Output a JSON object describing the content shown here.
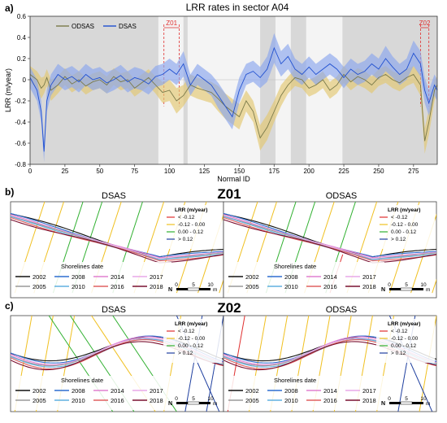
{
  "panel_a": {
    "letter": "a)",
    "title": "LRR rates in sector A04",
    "zone1_label": "Z01",
    "zone2_label": "Z02"
  },
  "panel_b": {
    "letter": "b)",
    "zone": "Z01",
    "left_title": "DSAS",
    "right_title": "ODSAS"
  },
  "panel_c": {
    "letter": "c)",
    "zone": "Z02",
    "left_title": "DSAS",
    "right_title": "ODSAS"
  },
  "lrr_legend": {
    "title": "LRR (m/year)",
    "items": [
      {
        "label": "< -0.12",
        "color": "#e03030"
      },
      {
        "label": "-0.12 - 0.00",
        "color": "#f0c020"
      },
      {
        "label": "0.00 - 0.12",
        "color": "#30b030"
      },
      {
        "label": "> 0.12",
        "color": "#2040a0"
      }
    ]
  },
  "shoreline_legend": {
    "title": "Shorelines date",
    "items": [
      {
        "label": "2002",
        "color": "#111111"
      },
      {
        "label": "2008",
        "color": "#2f6fd0"
      },
      {
        "label": "2014",
        "color": "#e080d0"
      },
      {
        "label": "2017",
        "color": "#e8a8e8"
      },
      {
        "label": "2005",
        "color": "#9a9a9a"
      },
      {
        "label": "2010",
        "color": "#60b0e0"
      },
      {
        "label": "2016",
        "color": "#e06060"
      },
      {
        "label": "2018",
        "color": "#7a1030"
      }
    ]
  },
  "scalebar": {
    "labels": [
      "0",
      "5",
      "10"
    ],
    "unit": "m",
    "north": "N"
  },
  "chart_data": {
    "type": "line",
    "title": "LRR rates in sector A04",
    "xlabel": "Normal ID",
    "ylabel": "LRR (m/year)",
    "xlim": [
      0,
      292
    ],
    "ylim": [
      -0.8,
      0.6
    ],
    "x_ticks": [
      0,
      25,
      50,
      75,
      100,
      125,
      150,
      175,
      200,
      225,
      250,
      275
    ],
    "y_ticks": [
      -0.8,
      -0.6,
      -0.4,
      -0.2,
      0,
      0.2,
      0.4,
      0.6
    ],
    "legend_position": "top-left",
    "grid": false,
    "shaded_ranges": [
      [
        0,
        92
      ],
      [
        110,
        113
      ],
      [
        165,
        176
      ],
      [
        187,
        198
      ],
      [
        224,
        292
      ]
    ],
    "zones": [
      {
        "label": "Z01",
        "x_range": [
          96,
          107
        ]
      },
      {
        "label": "Z02",
        "x_range": [
          280,
          286
        ]
      }
    ],
    "x": [
      0,
      5,
      8,
      10,
      12,
      15,
      20,
      25,
      30,
      35,
      40,
      45,
      50,
      55,
      60,
      65,
      70,
      75,
      80,
      85,
      90,
      95,
      100,
      105,
      110,
      115,
      120,
      125,
      130,
      135,
      140,
      145,
      150,
      155,
      160,
      165,
      170,
      175,
      180,
      185,
      190,
      195,
      200,
      205,
      210,
      215,
      220,
      225,
      230,
      235,
      240,
      245,
      250,
      255,
      260,
      265,
      270,
      275,
      280,
      283,
      286,
      290,
      292
    ],
    "series": [
      {
        "name": "ODSAS",
        "color": "#7a7a4a",
        "band_color": "#e4c870",
        "values": [
          0.05,
          0.0,
          -0.08,
          -0.05,
          0.02,
          -0.1,
          -0.05,
          0.03,
          -0.04,
          0.0,
          -0.06,
          -0.02,
          0.0,
          -0.05,
          0.03,
          -0.02,
          0.0,
          -0.08,
          -0.03,
          0.02,
          -0.05,
          -0.12,
          -0.1,
          -0.2,
          -0.15,
          -0.05,
          -0.08,
          -0.1,
          -0.12,
          -0.18,
          -0.25,
          -0.3,
          -0.35,
          -0.2,
          -0.3,
          -0.55,
          -0.45,
          -0.3,
          -0.15,
          -0.05,
          0.02,
          0.0,
          -0.08,
          -0.05,
          0.0,
          -0.1,
          -0.05,
          0.05,
          -0.02,
          0.03,
          0.0,
          -0.05,
          0.02,
          0.05,
          0.0,
          -0.03,
          0.02,
          0.05,
          -0.05,
          -0.58,
          -0.4,
          -0.1,
          -0.05
        ],
        "band": [
          0.08,
          0.08,
          0.1,
          0.08,
          0.08,
          0.1,
          0.08,
          0.08,
          0.08,
          0.08,
          0.08,
          0.08,
          0.08,
          0.08,
          0.08,
          0.08,
          0.08,
          0.08,
          0.08,
          0.08,
          0.08,
          0.1,
          0.1,
          0.12,
          0.1,
          0.1,
          0.1,
          0.1,
          0.1,
          0.12,
          0.12,
          0.12,
          0.12,
          0.1,
          0.1,
          0.12,
          0.12,
          0.1,
          0.1,
          0.08,
          0.08,
          0.08,
          0.08,
          0.08,
          0.08,
          0.08,
          0.08,
          0.08,
          0.08,
          0.08,
          0.08,
          0.08,
          0.08,
          0.08,
          0.08,
          0.08,
          0.08,
          0.08,
          0.1,
          0.12,
          0.12,
          0.1,
          0.08
        ]
      },
      {
        "name": "DSAS",
        "color": "#2050d0",
        "band_color": "#8aa6ee",
        "values": [
          0.02,
          -0.1,
          -0.3,
          -0.68,
          -0.2,
          -0.05,
          0.05,
          0.0,
          0.03,
          -0.02,
          0.05,
          0.0,
          0.02,
          -0.03,
          0.0,
          0.04,
          -0.02,
          0.02,
          0.0,
          -0.04,
          0.03,
          0.05,
          0.1,
          0.05,
          0.15,
          -0.05,
          0.05,
          0.0,
          -0.05,
          -0.15,
          -0.25,
          -0.35,
          -0.1,
          0.05,
          0.08,
          0.02,
          0.1,
          0.3,
          0.15,
          0.22,
          0.1,
          0.05,
          0.12,
          0.05,
          0.1,
          0.15,
          0.1,
          0.02,
          0.1,
          0.05,
          0.08,
          0.15,
          0.1,
          0.2,
          0.12,
          0.05,
          0.1,
          0.25,
          0.15,
          -0.1,
          -0.22,
          -0.05,
          -0.1
        ],
        "band": [
          0.1,
          0.1,
          0.1,
          0.1,
          0.1,
          0.1,
          0.1,
          0.1,
          0.1,
          0.1,
          0.1,
          0.1,
          0.1,
          0.1,
          0.1,
          0.1,
          0.1,
          0.1,
          0.1,
          0.1,
          0.1,
          0.1,
          0.1,
          0.1,
          0.12,
          0.1,
          0.1,
          0.1,
          0.1,
          0.12,
          0.12,
          0.12,
          0.12,
          0.1,
          0.1,
          0.1,
          0.12,
          0.14,
          0.12,
          0.12,
          0.1,
          0.1,
          0.1,
          0.1,
          0.1,
          0.1,
          0.1,
          0.1,
          0.1,
          0.1,
          0.1,
          0.1,
          0.1,
          0.12,
          0.1,
          0.1,
          0.1,
          0.12,
          0.12,
          0.12,
          0.12,
          0.1,
          0.1
        ]
      }
    ]
  }
}
